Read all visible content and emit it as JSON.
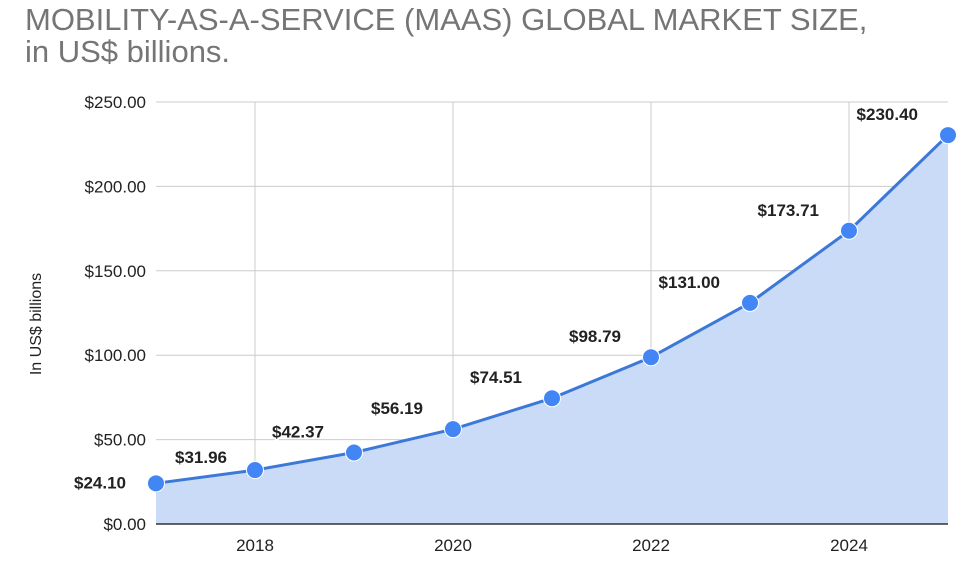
{
  "chart_data": {
    "type": "area",
    "title_line1": "MOBILITY-AS-A-SERVICE (MAAS) GLOBAL MARKET SIZE,",
    "title_line2": "in US$ billions.",
    "ylabel": "In US$ billions",
    "xlabel": "",
    "x": [
      2017,
      2018,
      2019,
      2020,
      2021,
      2022,
      2023,
      2024,
      2025
    ],
    "values": [
      24.1,
      31.96,
      42.37,
      56.19,
      74.51,
      98.79,
      131.0,
      173.71,
      230.4
    ],
    "data_labels": [
      "$24.10",
      "$31.96",
      "$42.37",
      "$56.19",
      "$74.51",
      "$98.79",
      "$131.00",
      "$173.71",
      "$230.40"
    ],
    "xlim": [
      2017,
      2025
    ],
    "ylim": [
      0,
      250
    ],
    "yticks": [
      0,
      50,
      100,
      150,
      200,
      250
    ],
    "ytick_labels": [
      "$0.00",
      "$50.00",
      "$100.00",
      "$150.00",
      "$200.00",
      "$250.00"
    ],
    "xticks": [
      2018,
      2020,
      2022,
      2024
    ],
    "xtick_labels": [
      "2018",
      "2020",
      "2022",
      "2024"
    ],
    "grid": true,
    "legend": "none",
    "colors": {
      "line": "#3c78d8",
      "point": "#4285f4",
      "fill": "#c9dbf7",
      "grid": "#cccccc",
      "axis": "#333333"
    }
  }
}
